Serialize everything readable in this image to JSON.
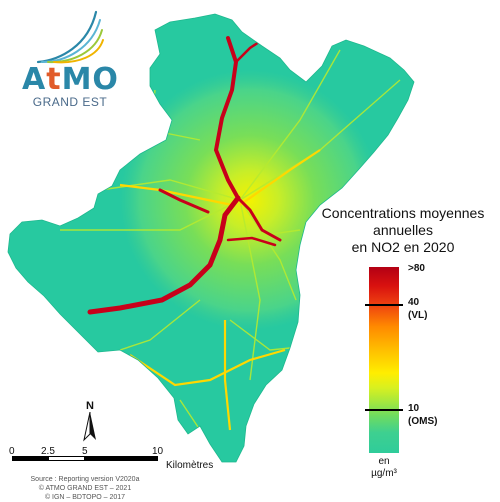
{
  "logo": {
    "wordmark_a": "A",
    "wordmark_t": "t",
    "wordmark_mo": "MO",
    "subtitle": "GRAND EST"
  },
  "legend": {
    "title_line1": "Concentrations moyennes",
    "title_line2": "annuelles",
    "title_line3": "en NO2 en 2020",
    "max_label": ">80",
    "vl_value": "40",
    "vl_tag": "(VL)",
    "oms_value": "10",
    "oms_tag": "(OMS)",
    "unit_line1": "en",
    "unit_line2": "µg/m³",
    "scale_max": 80,
    "thresholds": [
      40,
      10
    ]
  },
  "north": {
    "label": "N"
  },
  "scalebar": {
    "ticks": [
      "0",
      "2.5",
      "5",
      "10"
    ],
    "unit": "Kilomètres"
  },
  "credits": {
    "line1": "Source : Reporting version V2020a",
    "line2": "© ATMO GRAND EST – 2021",
    "line3": "© IGN – BDTOPO – 2017"
  },
  "colors": {
    "background_level": "#27c9a0",
    "low": "#2fcc9a",
    "mid": "#a8e83c",
    "high": "#ffee00",
    "road_heavy": "#c8001a",
    "road_medium": "#ffd000",
    "logo_blue": "#2a87a8",
    "logo_orange": "#e15b2a"
  }
}
